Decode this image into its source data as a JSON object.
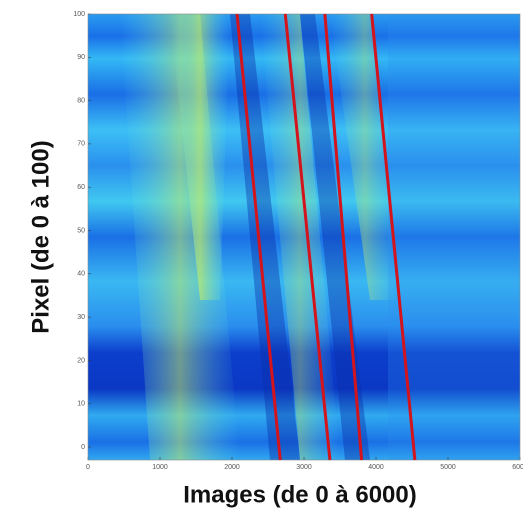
{
  "chart_data": {
    "type": "line",
    "x_label": "Images (de 0 à 6000)",
    "y_label": "Pixel (de 0 à 100)",
    "xlim": [
      0,
      6000
    ],
    "ylim": [
      -3,
      100
    ],
    "xticks": [
      0,
      1000,
      2000,
      3000,
      4000,
      5000,
      6000
    ],
    "yticks": [
      0,
      10,
      20,
      30,
      40,
      50,
      60,
      70,
      80,
      90,
      100
    ],
    "series": [
      {
        "color": "#d4141c",
        "x": [
          2070,
          2670
        ],
        "values": [
          100,
          -3
        ]
      },
      {
        "color": "#d4141c",
        "x": [
          2740,
          3360
        ],
        "values": [
          100,
          -3
        ]
      },
      {
        "color": "#d4141c",
        "x": [
          3290,
          3800
        ],
        "values": [
          100,
          -3
        ]
      },
      {
        "color": "#d4141c",
        "x": [
          3940,
          4540
        ],
        "values": [
          100,
          -3
        ]
      }
    ]
  }
}
